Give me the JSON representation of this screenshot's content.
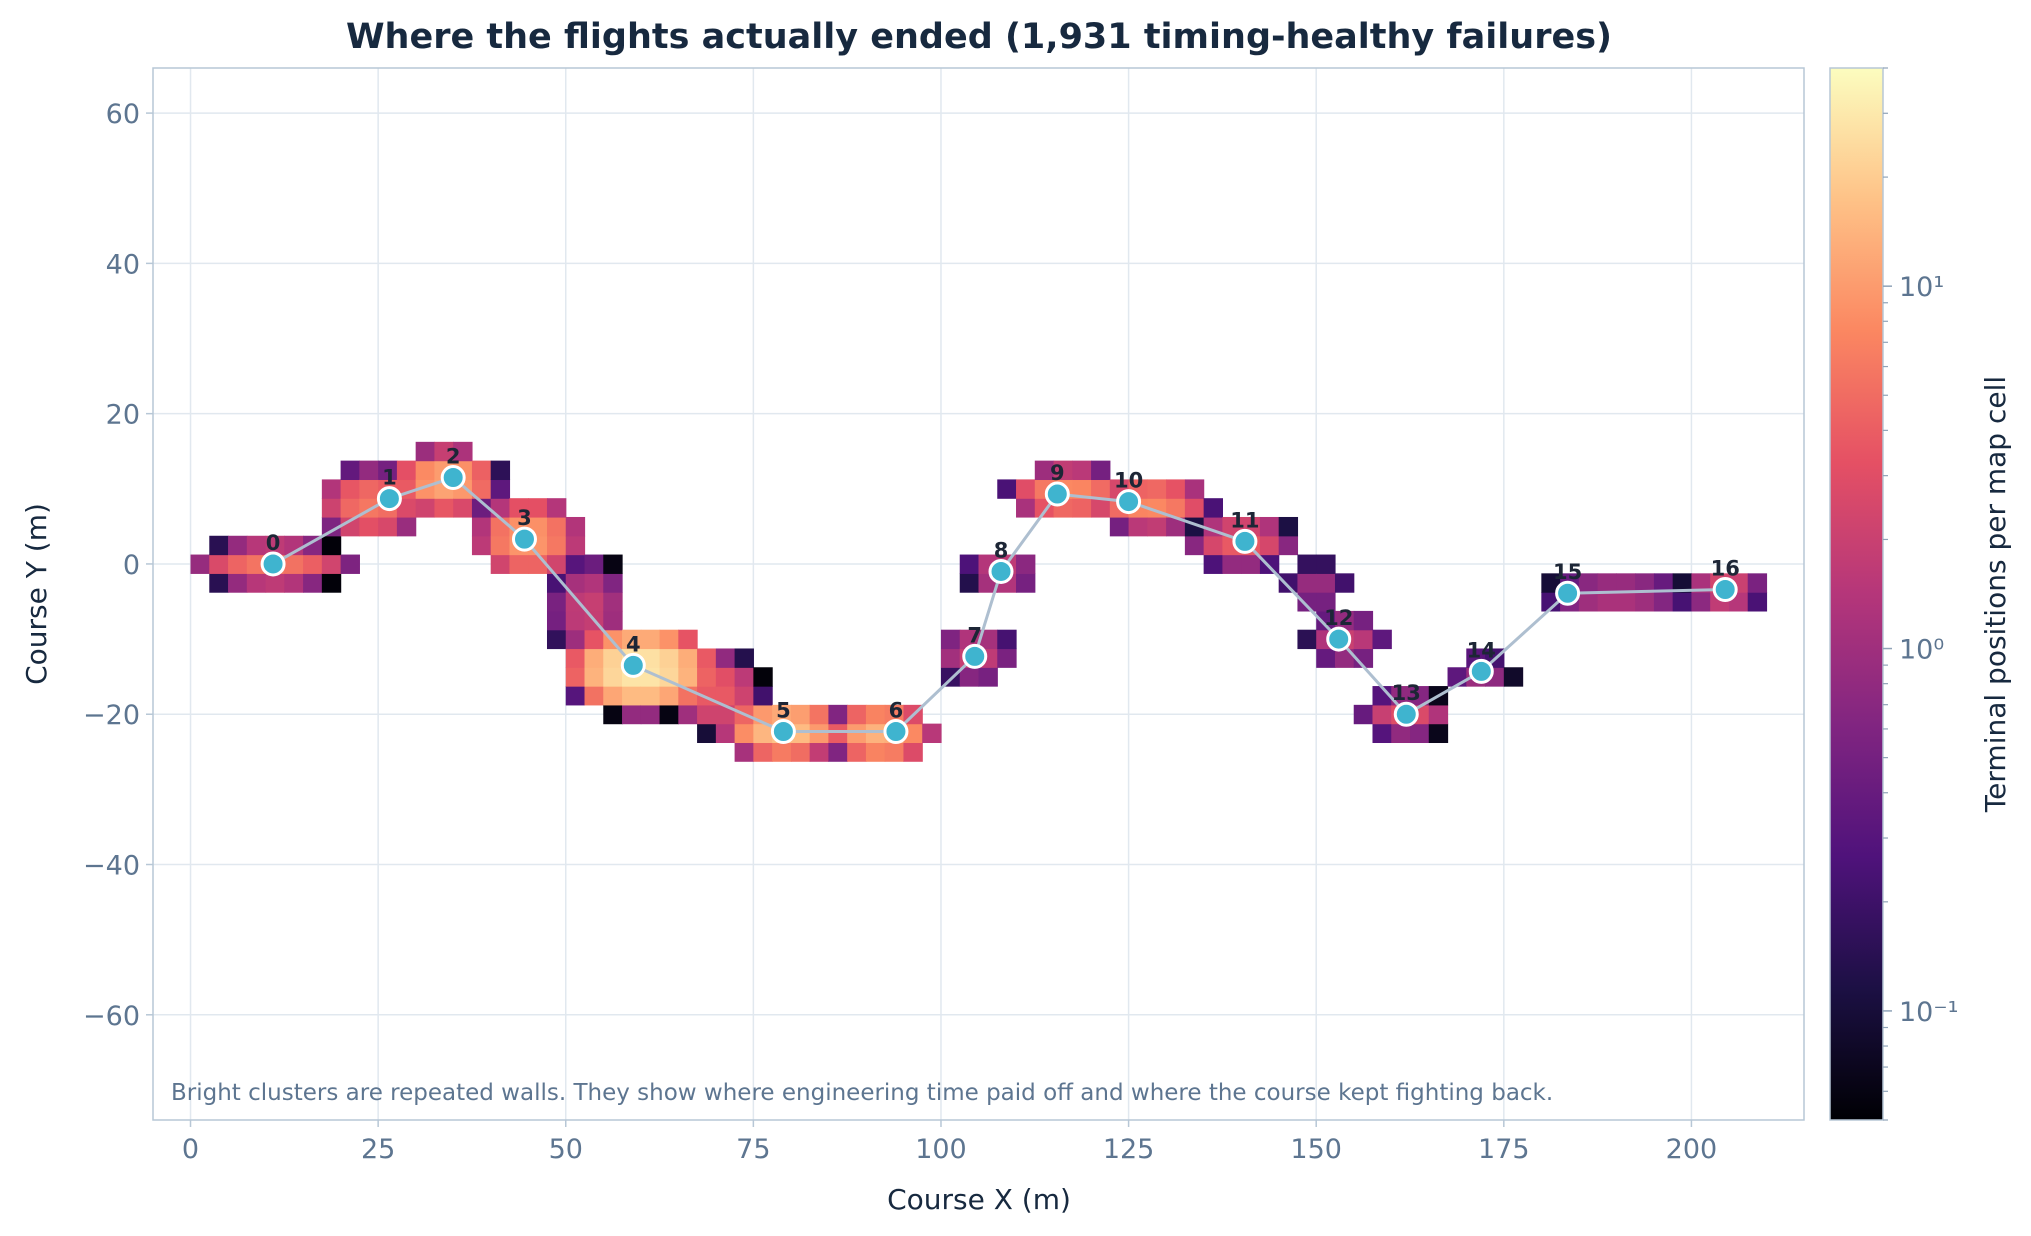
{
  "chart_data": {
    "type": "heatmap",
    "title": "Where the flights actually ended (1,931 timing-healthy failures)",
    "xlabel": "Course X (m)",
    "ylabel": "Course Y (m)",
    "xlim": [
      -5,
      215
    ],
    "ylim": [
      -74,
      66
    ],
    "x_ticks": [
      0,
      25,
      50,
      75,
      100,
      125,
      150,
      175,
      200
    ],
    "x_tick_labels": [
      "0",
      "25",
      "50",
      "75",
      "100",
      "125",
      "150",
      "175",
      "200"
    ],
    "y_ticks": [
      60,
      40,
      20,
      0,
      -20,
      -40,
      -60
    ],
    "y_tick_labels": [
      "60",
      "40",
      "20",
      "0",
      "−20",
      "−40",
      "−60"
    ],
    "grid": true,
    "annotation": "Bright clusters are repeated walls. They show where engineering time paid off and where the course kept fighting back.",
    "colorbar": {
      "label": "Terminal positions per map cell",
      "scale": "log",
      "range": [
        0.05,
        40
      ],
      "major_ticks": [
        {
          "value": 10,
          "label": "10¹"
        },
        {
          "value": 1,
          "label": "10⁰"
        },
        {
          "value": 0.1,
          "label": "10⁻¹"
        }
      ]
    },
    "gates": [
      {
        "label": "0",
        "x": 11,
        "y": 0
      },
      {
        "label": "1",
        "x": 26.5,
        "y": 8.7
      },
      {
        "label": "2",
        "x": 35,
        "y": 11.5
      },
      {
        "label": "3",
        "x": 44.5,
        "y": 3.3
      },
      {
        "label": "4",
        "x": 59,
        "y": -13.5
      },
      {
        "label": "5",
        "x": 79,
        "y": -22.3
      },
      {
        "label": "6",
        "x": 94,
        "y": -22.3
      },
      {
        "label": "7",
        "x": 104.5,
        "y": -12.3
      },
      {
        "label": "8",
        "x": 108,
        "y": -1
      },
      {
        "label": "9",
        "x": 115.5,
        "y": 9.3
      },
      {
        "label": "10",
        "x": 125,
        "y": 8.3
      },
      {
        "label": "11",
        "x": 140.5,
        "y": 3
      },
      {
        "label": "12",
        "x": 153,
        "y": -10
      },
      {
        "label": "13",
        "x": 162,
        "y": -20
      },
      {
        "label": "14",
        "x": 172,
        "y": -14.3
      },
      {
        "label": "15",
        "x": 183.5,
        "y": -3.9
      },
      {
        "label": "16",
        "x": 204.5,
        "y": -3.4
      }
    ],
    "clusters": [
      {
        "x": 11,
        "y": 0,
        "rx": 12,
        "ry": 3.5,
        "peak": 6
      },
      {
        "x": 24,
        "y": 8,
        "rx": 8,
        "ry": 5.5,
        "peak": 6
      },
      {
        "x": 34,
        "y": 11,
        "rx": 8,
        "ry": 5,
        "peak": 12
      },
      {
        "x": 45,
        "y": 3.5,
        "rx": 8,
        "ry": 6,
        "peak": 10
      },
      {
        "x": 53,
        "y": -6,
        "rx": 6,
        "ry": 8,
        "peak": 2
      },
      {
        "x": 60,
        "y": -14,
        "rx": 11,
        "ry": 6.5,
        "peak": 30
      },
      {
        "x": 70,
        "y": -17,
        "rx": 7,
        "ry": 6,
        "peak": 4
      },
      {
        "x": 79,
        "y": -22,
        "rx": 9,
        "ry": 4.5,
        "peak": 18
      },
      {
        "x": 92,
        "y": -22.5,
        "rx": 8,
        "ry": 4.5,
        "peak": 14
      },
      {
        "x": 104.5,
        "y": -12,
        "rx": 6,
        "ry": 4.5,
        "peak": 2
      },
      {
        "x": 108,
        "y": -1,
        "rx": 5.5,
        "ry": 3.5,
        "peak": 2
      },
      {
        "x": 117,
        "y": 9.5,
        "rx": 9,
        "ry": 4,
        "peak": 8
      },
      {
        "x": 128,
        "y": 8,
        "rx": 9,
        "ry": 4,
        "peak": 8
      },
      {
        "x": 140,
        "y": 3,
        "rx": 8,
        "ry": 4,
        "peak": 4
      },
      {
        "x": 150,
        "y": -3,
        "rx": 5,
        "ry": 4,
        "peak": 1
      },
      {
        "x": 154,
        "y": -10,
        "rx": 6,
        "ry": 4,
        "peak": 2
      },
      {
        "x": 162,
        "y": -20,
        "rx": 7,
        "ry": 3.5,
        "peak": 3
      },
      {
        "x": 172,
        "y": -14.5,
        "rx": 5,
        "ry": 3,
        "peak": 1
      },
      {
        "x": 190,
        "y": -4,
        "rx": 12,
        "ry": 3,
        "peak": 1.5
      },
      {
        "x": 204.5,
        "y": -3.5,
        "rx": 6,
        "ry": 3,
        "peak": 3
      }
    ]
  }
}
